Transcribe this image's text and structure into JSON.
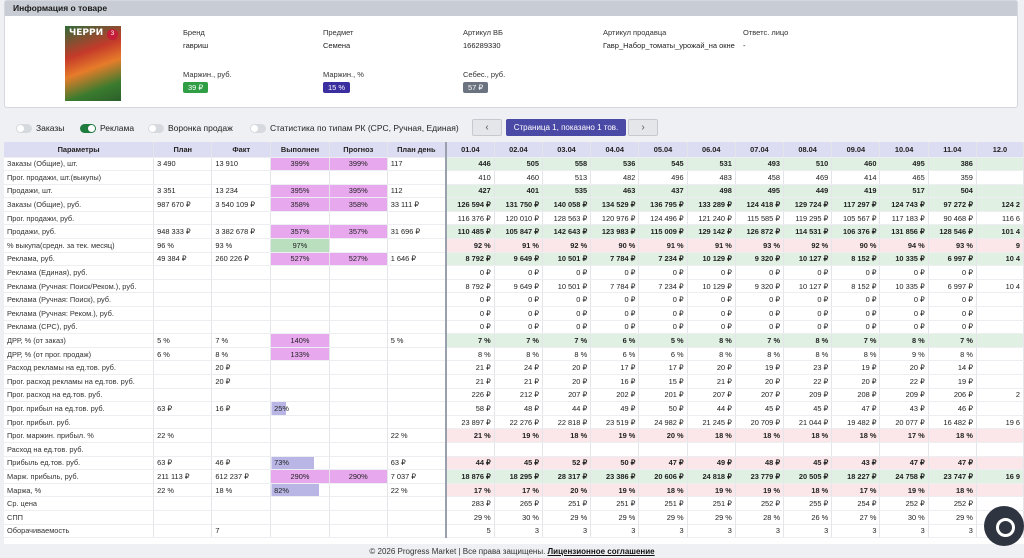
{
  "header": {
    "title": "Информация о товаре"
  },
  "product": {
    "image_title": "ЧЕРРИ",
    "image_badge": "3",
    "fields": [
      {
        "label": "Бренд",
        "value": "гавриш"
      },
      {
        "label": "Предмет",
        "value": "Семена"
      },
      {
        "label": "Артикул ВБ",
        "value": "166289330"
      },
      {
        "label": "Артикул продавца",
        "value": "Гавр_Набор_томаты_урожай_на окне"
      },
      {
        "label": "Ответс. лицо",
        "value": "-"
      }
    ],
    "metrics": [
      {
        "label": "Маржин., руб.",
        "value": "39 ₽",
        "color": "#2f9e44"
      },
      {
        "label": "Маржин., %",
        "value": "15 %",
        "color": "#3b2fa0"
      },
      {
        "label": "Себес., руб.",
        "value": "57 ₽",
        "color": "#6b7280"
      }
    ]
  },
  "toggles": [
    {
      "label": "Заказы",
      "on": false
    },
    {
      "label": "Реклама",
      "on": true
    },
    {
      "label": "Воронка продаж",
      "on": false
    },
    {
      "label": "Статистика по типам РК (CPC, Ручная, Единая)",
      "on": false
    }
  ],
  "pager": {
    "prev": "‹",
    "next": "›",
    "label": "Страница 1, показано 1 тов."
  },
  "table": {
    "headers": [
      "Параметры",
      "План",
      "Факт",
      "Выполнен",
      "Прогноз",
      "План день"
    ],
    "dates": [
      "01.04",
      "02.04",
      "03.04",
      "04.04",
      "05.04",
      "06.04",
      "07.04",
      "08.04",
      "09.04",
      "10.04",
      "11.04",
      "12.0"
    ],
    "rows": [
      {
        "name": "Заказы (Общие), шт.",
        "plan": "3 490",
        "fact": "13 910",
        "done": "399%",
        "done_style": "mag",
        "done_fill": 1,
        "forecast": "399%",
        "forecast_style": "mag",
        "day": "117",
        "bg": "green",
        "bold": true,
        "vals": [
          "446",
          "505",
          "558",
          "536",
          "545",
          "531",
          "493",
          "510",
          "460",
          "495",
          "386",
          ""
        ]
      },
      {
        "name": "Прог. продажи, шт.(выкупы)",
        "plan": "",
        "fact": "",
        "done": "",
        "forecast": "",
        "day": "",
        "vals": [
          "410",
          "460",
          "513",
          "482",
          "496",
          "483",
          "458",
          "469",
          "414",
          "465",
          "359",
          ""
        ]
      },
      {
        "name": "Продажи, шт.",
        "plan": "3 351",
        "fact": "13 234",
        "done": "395%",
        "done_style": "mag",
        "done_fill": 1,
        "forecast": "395%",
        "forecast_style": "mag",
        "day": "112",
        "bg": "green",
        "bold": true,
        "vals": [
          "427",
          "401",
          "535",
          "463",
          "437",
          "498",
          "495",
          "449",
          "419",
          "517",
          "504",
          ""
        ]
      },
      {
        "name": "Заказы (Общие), руб.",
        "plan": "987 670 ₽",
        "fact": "3 540 109 ₽",
        "done": "358%",
        "done_style": "mag",
        "done_fill": 1,
        "forecast": "358%",
        "forecast_style": "mag",
        "day": "33 111 ₽",
        "bg": "green",
        "bold": true,
        "sep": true,
        "vals": [
          "126 594 ₽",
          "131 750 ₽",
          "140 058 ₽",
          "134 529 ₽",
          "136 795 ₽",
          "133 289 ₽",
          "124 418 ₽",
          "129 724 ₽",
          "117 297 ₽",
          "124 743 ₽",
          "97 272 ₽",
          "124 2"
        ]
      },
      {
        "name": "Прог. продажи, руб.",
        "plan": "",
        "fact": "",
        "done": "",
        "forecast": "",
        "day": "",
        "vals": [
          "116 376 ₽",
          "120 010 ₽",
          "128 563 ₽",
          "120 976 ₽",
          "124 496 ₽",
          "121 240 ₽",
          "115 585 ₽",
          "119 295 ₽",
          "105 567 ₽",
          "117 183 ₽",
          "90 468 ₽",
          "116 6"
        ]
      },
      {
        "name": "Продажи, руб.",
        "plan": "948 333 ₽",
        "fact": "3 382 678 ₽",
        "done": "357%",
        "done_style": "mag",
        "done_fill": 1,
        "forecast": "357%",
        "forecast_style": "mag",
        "day": "31 696 ₽",
        "bg": "green",
        "bold": true,
        "vals": [
          "110 485 ₽",
          "105 847 ₽",
          "142 643 ₽",
          "123 983 ₽",
          "115 009 ₽",
          "129 142 ₽",
          "126 872 ₽",
          "114 531 ₽",
          "106 376 ₽",
          "131 856 ₽",
          "128 546 ₽",
          "101 4"
        ]
      },
      {
        "name": "% выкупа(средн. за тек. месяц)",
        "plan": "96 %",
        "fact": "93 %",
        "done": "97%",
        "done_style": "grn",
        "done_fill": 1,
        "forecast": "",
        "day": "",
        "bg": "pink",
        "bold": true,
        "vals": [
          "92 %",
          "91 %",
          "92 %",
          "90 %",
          "91 %",
          "91 %",
          "93 %",
          "92 %",
          "90 %",
          "94 %",
          "93 %",
          "9"
        ]
      },
      {
        "name": "Реклама, руб.",
        "plan": "49 384 ₽",
        "fact": "260 226 ₽",
        "done": "527%",
        "done_style": "mag",
        "done_fill": 1,
        "forecast": "527%",
        "forecast_style": "mag",
        "day": "1 646 ₽",
        "bg": "green",
        "bold": true,
        "vals": [
          "8 792 ₽",
          "9 649 ₽",
          "10 501 ₽",
          "7 784 ₽",
          "7 234 ₽",
          "10 129 ₽",
          "9 320 ₽",
          "10 127 ₽",
          "8 152 ₽",
          "10 335 ₽",
          "6 997 ₽",
          "10 4"
        ]
      },
      {
        "name": "Реклама (Единая), руб.",
        "plan": "",
        "fact": "",
        "done": "",
        "forecast": "",
        "day": "",
        "vals": [
          "0 ₽",
          "0 ₽",
          "0 ₽",
          "0 ₽",
          "0 ₽",
          "0 ₽",
          "0 ₽",
          "0 ₽",
          "0 ₽",
          "0 ₽",
          "0 ₽",
          ""
        ]
      },
      {
        "name": "Реклама (Ручная: Поиск/Реком.), руб.",
        "plan": "",
        "fact": "",
        "done": "",
        "forecast": "",
        "day": "",
        "vals": [
          "8 792 ₽",
          "9 649 ₽",
          "10 501 ₽",
          "7 784 ₽",
          "7 234 ₽",
          "10 129 ₽",
          "9 320 ₽",
          "10 127 ₽",
          "8 152 ₽",
          "10 335 ₽",
          "6 997 ₽",
          "10 4"
        ]
      },
      {
        "name": "Реклама (Ручная: Поиск), руб.",
        "plan": "",
        "fact": "",
        "done": "",
        "forecast": "",
        "day": "",
        "vals": [
          "0 ₽",
          "0 ₽",
          "0 ₽",
          "0 ₽",
          "0 ₽",
          "0 ₽",
          "0 ₽",
          "0 ₽",
          "0 ₽",
          "0 ₽",
          "0 ₽",
          ""
        ]
      },
      {
        "name": "Реклама (Ручная: Реком.), руб.",
        "plan": "",
        "fact": "",
        "done": "",
        "forecast": "",
        "day": "",
        "vals": [
          "0 ₽",
          "0 ₽",
          "0 ₽",
          "0 ₽",
          "0 ₽",
          "0 ₽",
          "0 ₽",
          "0 ₽",
          "0 ₽",
          "0 ₽",
          "0 ₽",
          ""
        ]
      },
      {
        "name": "Реклама (CPC), руб.",
        "plan": "",
        "fact": "",
        "done": "",
        "forecast": "",
        "day": "",
        "vals": [
          "0 ₽",
          "0 ₽",
          "0 ₽",
          "0 ₽",
          "0 ₽",
          "0 ₽",
          "0 ₽",
          "0 ₽",
          "0 ₽",
          "0 ₽",
          "0 ₽",
          ""
        ]
      },
      {
        "name": "ДРР, % (от заказ)",
        "plan": "5 %",
        "fact": "7 %",
        "done": "140%",
        "done_style": "mag",
        "done_fill": 1,
        "forecast": "",
        "day": "5 %",
        "bg": "green",
        "bold": true,
        "vals": [
          "7 %",
          "7 %",
          "7 %",
          "6 %",
          "5 %",
          "8 %",
          "7 %",
          "8 %",
          "7 %",
          "8 %",
          "7 %",
          ""
        ]
      },
      {
        "name": "ДРР, % (от прог. продаж)",
        "plan": "6 %",
        "fact": "8 %",
        "done": "133%",
        "done_style": "mag",
        "done_fill": 1,
        "forecast": "",
        "day": "",
        "vals": [
          "8 %",
          "8 %",
          "8 %",
          "6 %",
          "6 %",
          "8 %",
          "8 %",
          "8 %",
          "8 %",
          "9 %",
          "8 %",
          ""
        ]
      },
      {
        "name": "Расход рекламы на ед.тов. руб.",
        "plan": "",
        "fact": "20 ₽",
        "done": "",
        "forecast": "",
        "day": "",
        "vals": [
          "21 ₽",
          "24 ₽",
          "20 ₽",
          "17 ₽",
          "17 ₽",
          "20 ₽",
          "19 ₽",
          "23 ₽",
          "19 ₽",
          "20 ₽",
          "14 ₽",
          ""
        ]
      },
      {
        "name": "Прог. расход рекламы на ед.тов. руб.",
        "plan": "",
        "fact": "20 ₽",
        "done": "",
        "forecast": "",
        "day": "",
        "sep": true,
        "vals": [
          "21 ₽",
          "21 ₽",
          "20 ₽",
          "16 ₽",
          "15 ₽",
          "21 ₽",
          "20 ₽",
          "22 ₽",
          "20 ₽",
          "22 ₽",
          "19 ₽",
          ""
        ]
      },
      {
        "name": "Прог. расход на ед.тов. руб.",
        "plan": "",
        "fact": "",
        "done": "",
        "forecast": "",
        "day": "",
        "vals": [
          "226 ₽",
          "212 ₽",
          "207 ₽",
          "202 ₽",
          "201 ₽",
          "207 ₽",
          "207 ₽",
          "209 ₽",
          "208 ₽",
          "209 ₽",
          "206 ₽",
          "2"
        ]
      },
      {
        "name": "Прог. прибыл на ед.тов. руб.",
        "plan": "63 ₽",
        "fact": "16 ₽",
        "done": "25%",
        "done_style": "purp",
        "done_fill": 0.25,
        "forecast": "",
        "day": "",
        "vals": [
          "58 ₽",
          "48 ₽",
          "44 ₽",
          "49 ₽",
          "50 ₽",
          "44 ₽",
          "45 ₽",
          "45 ₽",
          "47 ₽",
          "43 ₽",
          "46 ₽",
          ""
        ]
      },
      {
        "name": "Прог. прибыл. руб.",
        "plan": "",
        "fact": "",
        "done": "",
        "forecast": "",
        "day": "",
        "vals": [
          "23 897 ₽",
          "22 276 ₽",
          "22 818 ₽",
          "23 519 ₽",
          "24 982 ₽",
          "21 245 ₽",
          "20 709 ₽",
          "21 044 ₽",
          "19 482 ₽",
          "20 077 ₽",
          "16 482 ₽",
          "19 6"
        ]
      },
      {
        "name": "Прог. маржин. прибыл. %",
        "plan": "22 %",
        "fact": "",
        "done": "",
        "forecast": "",
        "day": "22 %",
        "bg": "pink",
        "bold": true,
        "vals": [
          "21 %",
          "19 %",
          "18 %",
          "19 %",
          "20 %",
          "18 %",
          "18 %",
          "18 %",
          "18 %",
          "17 %",
          "18 %",
          ""
        ]
      },
      {
        "name": "Расход на ед.тов. руб.",
        "plan": "",
        "fact": "",
        "done": "",
        "forecast": "",
        "day": "",
        "vals": [
          "",
          "",
          "",
          "",
          "",
          "",
          "",
          "",
          "",
          "",
          "",
          ""
        ]
      },
      {
        "name": "Прибыль ед.тов. руб.",
        "plan": "63 ₽",
        "fact": "46 ₽",
        "done": "73%",
        "done_style": "purp",
        "done_fill": 0.73,
        "forecast": "",
        "day": "63 ₽",
        "bg": "pink",
        "bold": true,
        "vals": [
          "44 ₽",
          "45 ₽",
          "52 ₽",
          "50 ₽",
          "47 ₽",
          "49 ₽",
          "48 ₽",
          "45 ₽",
          "43 ₽",
          "47 ₽",
          "47 ₽",
          ""
        ]
      },
      {
        "name": "Марж. прибыль, руб.",
        "plan": "211 113 ₽",
        "fact": "612 237 ₽",
        "done": "290%",
        "done_style": "mag",
        "done_fill": 1,
        "forecast": "290%",
        "forecast_style": "mag",
        "day": "7 037 ₽",
        "bg": "green",
        "bold": true,
        "vals": [
          "18 876 ₽",
          "18 295 ₽",
          "28 317 ₽",
          "23 386 ₽",
          "20 606 ₽",
          "24 818 ₽",
          "23 779 ₽",
          "20 505 ₽",
          "18 227 ₽",
          "24 758 ₽",
          "23 747 ₽",
          "16 9"
        ]
      },
      {
        "name": "Маржа, %",
        "plan": "22 %",
        "fact": "18 %",
        "done": "82%",
        "done_style": "purp",
        "done_fill": 0.82,
        "forecast": "",
        "day": "22 %",
        "bg": "pink",
        "bold": true,
        "vals": [
          "17 %",
          "17 %",
          "20 %",
          "19 %",
          "18 %",
          "19 %",
          "19 %",
          "18 %",
          "17 %",
          "19 %",
          "18 %",
          ""
        ]
      },
      {
        "name": "Ср. цена",
        "plan": "",
        "fact": "",
        "done": "",
        "forecast": "",
        "day": "",
        "sep": true,
        "vals": [
          "283 ₽",
          "265 ₽",
          "251 ₽",
          "251 ₽",
          "251 ₽",
          "251 ₽",
          "252 ₽",
          "255 ₽",
          "254 ₽",
          "252 ₽",
          "252 ₽",
          ""
        ]
      },
      {
        "name": "СПП",
        "plan": "",
        "fact": "",
        "done": "",
        "forecast": "",
        "day": "",
        "vals": [
          "29 %",
          "30 %",
          "29 %",
          "29 %",
          "29 %",
          "29 %",
          "28 %",
          "26 %",
          "27 %",
          "30 %",
          "29 %",
          ""
        ]
      },
      {
        "name": "Оборачиваемость",
        "plan": "",
        "fact": "7",
        "done": "",
        "forecast": "",
        "day": "",
        "vals": [
          "5",
          "3",
          "3",
          "3",
          "3",
          "3",
          "3",
          "3",
          "3",
          "3",
          "3",
          ""
        ]
      }
    ]
  },
  "footer": {
    "text": "© 2026 Progress Market | Все права защищены.",
    "link": "Лицензионное соглашение"
  }
}
